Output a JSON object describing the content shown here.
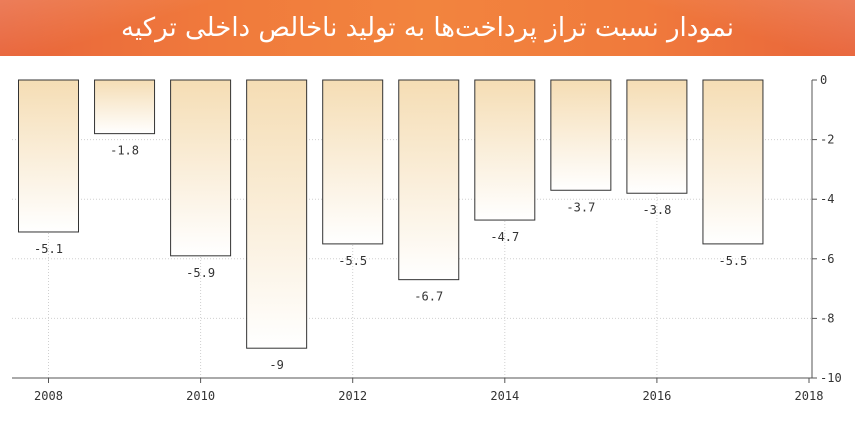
{
  "title": "نمودار نسبت تراز پرداخت‌ها به تولید ناخالص داخلی ترکیه",
  "colors": {
    "header": "#f07a3c",
    "bar_top": "#f5ddb4",
    "bar_bottom": "#ffffff",
    "bar_stroke": "#333333",
    "grid": "#d0d0d0"
  },
  "chart_data": {
    "type": "bar",
    "categories": [
      "2008",
      "2009",
      "2010",
      "2011",
      "2012",
      "2013",
      "2014",
      "2015",
      "2016",
      "2017"
    ],
    "values": [
      -5.1,
      -1.8,
      -5.9,
      -9,
      -5.5,
      -6.7,
      -4.7,
      -3.7,
      -3.8,
      -5.5
    ],
    "data_labels": [
      "-5.1",
      "-1.8",
      "-5.9",
      "-9",
      "-5.5",
      "-6.7",
      "-4.7",
      "-3.7",
      "-3.8",
      "-5.5"
    ],
    "x_ticks": [
      "2008",
      "2010",
      "2012",
      "2014",
      "2016",
      "2018"
    ],
    "y_ticks": [
      "0",
      "-2",
      "-4",
      "-6",
      "-8",
      "-10"
    ],
    "ylim": [
      -10,
      0
    ],
    "xlim": [
      2007.5,
      2018
    ],
    "grid": true,
    "y_axis_position": "right"
  }
}
